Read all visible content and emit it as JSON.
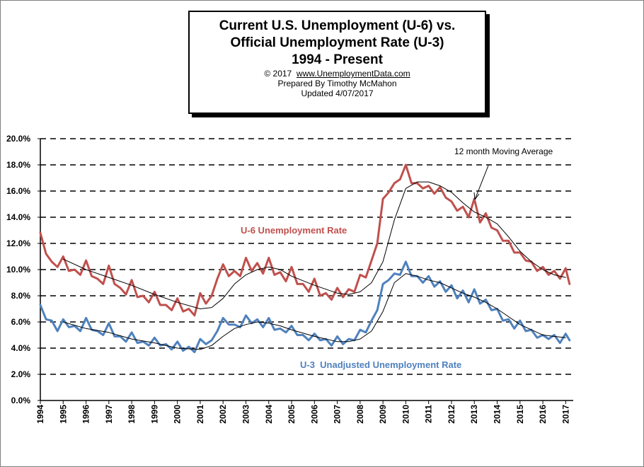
{
  "header": {
    "title_line1": "Current U.S. Unemployment (U-6) vs.",
    "title_line2": "Official Unemployment Rate (U-3)",
    "title_line3": "1994 - Present",
    "copyright_prefix": "© 2017",
    "copyright_url": "www.UnemploymentData.com",
    "prepared_by": "Prepared By Timothy McMahon",
    "updated": "Updated 4/07/2017"
  },
  "chart_data": {
    "type": "line",
    "title": "Current U.S. Unemployment (U-6) vs. Official Unemployment Rate (U-3) 1994 - Present",
    "xlabel": "",
    "ylabel": "",
    "ylim": [
      0,
      20
    ],
    "xlim": [
      1994,
      2017.33
    ],
    "grid": "horizontal dashed",
    "y_ticks": [
      "0.0%",
      "2.0%",
      "4.0%",
      "6.0%",
      "8.0%",
      "10.0%",
      "12.0%",
      "14.0%",
      "16.0%",
      "18.0%",
      "20.0%"
    ],
    "x_ticks": [
      "1994",
      "1995",
      "1996",
      "1997",
      "1998",
      "1999",
      "2000",
      "2001",
      "2002",
      "2003",
      "2004",
      "2005",
      "2006",
      "2007",
      "2008",
      "2009",
      "2010",
      "2011",
      "2012",
      "2013",
      "2014",
      "2015",
      "2016",
      "2017"
    ],
    "series": [
      {
        "name": "U-6 Unemployment Rate",
        "color": "#c0504d",
        "x": [
          1994.0,
          1994.25,
          1994.5,
          1994.75,
          1995.0,
          1995.25,
          1995.5,
          1995.75,
          1996.0,
          1996.25,
          1996.5,
          1996.75,
          1997.0,
          1997.25,
          1997.5,
          1997.75,
          1998.0,
          1998.25,
          1998.5,
          1998.75,
          1999.0,
          1999.25,
          1999.5,
          1999.75,
          2000.0,
          2000.25,
          2000.5,
          2000.75,
          2001.0,
          2001.25,
          2001.5,
          2001.75,
          2002.0,
          2002.25,
          2002.5,
          2002.75,
          2003.0,
          2003.25,
          2003.5,
          2003.75,
          2004.0,
          2004.25,
          2004.5,
          2004.75,
          2005.0,
          2005.25,
          2005.5,
          2005.75,
          2006.0,
          2006.25,
          2006.5,
          2006.75,
          2007.0,
          2007.25,
          2007.5,
          2007.75,
          2008.0,
          2008.25,
          2008.5,
          2008.75,
          2009.0,
          2009.25,
          2009.5,
          2009.75,
          2010.0,
          2010.25,
          2010.5,
          2010.75,
          2011.0,
          2011.25,
          2011.5,
          2011.75,
          2012.0,
          2012.25,
          2012.5,
          2012.75,
          2013.0,
          2013.25,
          2013.5,
          2013.75,
          2014.0,
          2014.25,
          2014.5,
          2014.75,
          2015.0,
          2015.25,
          2015.5,
          2015.75,
          2016.0,
          2016.25,
          2016.5,
          2016.75,
          2017.0,
          2017.17
        ],
        "values": [
          12.8,
          11.2,
          10.6,
          10.2,
          11.0,
          9.9,
          10.0,
          9.6,
          10.7,
          9.5,
          9.3,
          8.9,
          10.3,
          8.9,
          8.6,
          8.1,
          9.2,
          7.9,
          8.0,
          7.5,
          8.3,
          7.3,
          7.3,
          6.9,
          7.8,
          6.8,
          7.0,
          6.5,
          8.2,
          7.4,
          8.0,
          9.3,
          10.4,
          9.5,
          9.9,
          9.5,
          10.9,
          9.9,
          10.5,
          9.7,
          10.9,
          9.6,
          9.8,
          9.1,
          10.2,
          8.9,
          8.9,
          8.3,
          9.3,
          8.0,
          8.2,
          7.7,
          8.6,
          7.9,
          8.5,
          8.3,
          9.6,
          9.4,
          10.7,
          12.0,
          15.4,
          15.9,
          16.6,
          16.9,
          18.0,
          16.6,
          16.6,
          16.2,
          16.4,
          15.8,
          16.3,
          15.5,
          15.2,
          14.5,
          14.8,
          14.0,
          15.4,
          13.6,
          14.3,
          13.2,
          13.0,
          12.2,
          12.2,
          11.3,
          11.3,
          10.7,
          10.6,
          9.9,
          10.2,
          9.6,
          9.9,
          9.3,
          10.1,
          8.9
        ]
      },
      {
        "name": "U-3 Unadjusted Unemployment Rate",
        "color": "#4f81bd",
        "x": [
          1994.0,
          1994.25,
          1994.5,
          1994.75,
          1995.0,
          1995.25,
          1995.5,
          1995.75,
          1996.0,
          1996.25,
          1996.5,
          1996.75,
          1997.0,
          1997.25,
          1997.5,
          1997.75,
          1998.0,
          1998.25,
          1998.5,
          1998.75,
          1999.0,
          1999.25,
          1999.5,
          1999.75,
          2000.0,
          2000.25,
          2000.5,
          2000.75,
          2001.0,
          2001.25,
          2001.5,
          2001.75,
          2002.0,
          2002.25,
          2002.5,
          2002.75,
          2003.0,
          2003.25,
          2003.5,
          2003.75,
          2004.0,
          2004.25,
          2004.5,
          2004.75,
          2005.0,
          2005.25,
          2005.5,
          2005.75,
          2006.0,
          2006.25,
          2006.5,
          2006.75,
          2007.0,
          2007.25,
          2007.5,
          2007.75,
          2008.0,
          2008.25,
          2008.5,
          2008.75,
          2009.0,
          2009.25,
          2009.5,
          2009.75,
          2010.0,
          2010.25,
          2010.5,
          2010.75,
          2011.0,
          2011.25,
          2011.5,
          2011.75,
          2012.0,
          2012.25,
          2012.5,
          2012.75,
          2013.0,
          2013.25,
          2013.5,
          2013.75,
          2014.0,
          2014.25,
          2014.5,
          2014.75,
          2015.0,
          2015.25,
          2015.5,
          2015.75,
          2016.0,
          2016.25,
          2016.5,
          2016.75,
          2017.0,
          2017.17
        ],
        "values": [
          7.3,
          6.2,
          6.1,
          5.3,
          6.2,
          5.6,
          5.7,
          5.3,
          6.3,
          5.4,
          5.3,
          5.0,
          5.9,
          4.9,
          4.9,
          4.5,
          5.2,
          4.4,
          4.5,
          4.2,
          4.8,
          4.2,
          4.3,
          3.9,
          4.5,
          3.8,
          4.1,
          3.7,
          4.7,
          4.3,
          4.6,
          5.3,
          6.3,
          5.8,
          5.8,
          5.6,
          6.5,
          5.9,
          6.2,
          5.6,
          6.3,
          5.4,
          5.5,
          5.2,
          5.7,
          5.0,
          5.0,
          4.6,
          5.1,
          4.6,
          4.7,
          4.2,
          4.9,
          4.3,
          4.7,
          4.6,
          5.4,
          5.2,
          6.1,
          6.9,
          8.9,
          9.2,
          9.7,
          9.6,
          10.6,
          9.5,
          9.5,
          9.0,
          9.5,
          8.7,
          9.1,
          8.3,
          8.8,
          7.8,
          8.4,
          7.5,
          8.5,
          7.4,
          7.7,
          6.9,
          7.0,
          6.1,
          6.2,
          5.5,
          6.1,
          5.3,
          5.4,
          4.8,
          5.0,
          4.7,
          5.0,
          4.4,
          5.1,
          4.6
        ]
      },
      {
        "name": "12 month Moving Average",
        "role": "u6-moving-average",
        "color": "#000000",
        "x": [
          1995.0,
          1996.0,
          1997.0,
          1998.0,
          1999.0,
          2000.0,
          2001.0,
          2001.5,
          2002.0,
          2002.5,
          2003.0,
          2003.5,
          2004.0,
          2004.5,
          2005.0,
          2006.0,
          2007.0,
          2007.5,
          2008.0,
          2008.5,
          2009.0,
          2009.5,
          2010.0,
          2010.5,
          2011.0,
          2011.5,
          2012.0,
          2012.5,
          2013.0,
          2013.5,
          2014.0,
          2014.5,
          2015.0,
          2015.5,
          2016.0,
          2016.5,
          2017.0
        ],
        "values": [
          10.8,
          10.0,
          9.4,
          8.8,
          8.1,
          7.5,
          7.0,
          7.1,
          7.8,
          8.9,
          9.6,
          10.0,
          10.2,
          10.0,
          9.5,
          8.8,
          8.2,
          8.1,
          8.3,
          9.0,
          10.6,
          13.8,
          16.2,
          16.7,
          16.7,
          16.4,
          15.9,
          15.1,
          14.4,
          14.0,
          13.5,
          12.5,
          11.4,
          10.6,
          10.0,
          9.6,
          9.4
        ]
      },
      {
        "name": "",
        "role": "u3-moving-average",
        "color": "#000000",
        "x": [
          1995.0,
          1996.0,
          1997.0,
          1998.0,
          1999.0,
          2000.0,
          2001.0,
          2001.5,
          2002.0,
          2002.5,
          2003.0,
          2003.5,
          2004.0,
          2004.5,
          2005.0,
          2006.0,
          2007.0,
          2007.5,
          2008.0,
          2008.5,
          2009.0,
          2009.5,
          2010.0,
          2010.5,
          2011.0,
          2011.5,
          2012.0,
          2012.5,
          2013.0,
          2013.5,
          2014.0,
          2014.5,
          2015.0,
          2015.5,
          2016.0,
          2016.5,
          2017.0
        ],
        "values": [
          6.0,
          5.5,
          5.2,
          4.7,
          4.4,
          4.0,
          3.9,
          4.2,
          4.9,
          5.5,
          5.8,
          6.0,
          5.9,
          5.7,
          5.4,
          4.9,
          4.5,
          4.5,
          4.7,
          5.3,
          6.8,
          9.0,
          9.7,
          9.5,
          9.2,
          9.0,
          8.6,
          8.2,
          7.9,
          7.5,
          7.0,
          6.4,
          5.8,
          5.4,
          5.0,
          4.9,
          4.8
        ]
      }
    ],
    "annotations": {
      "moving_average_label": "12 month Moving Average",
      "u6_label": "U-6 Unemployment Rate",
      "u3_label": "U-3  Unadjusted Unemployment Rate"
    }
  }
}
